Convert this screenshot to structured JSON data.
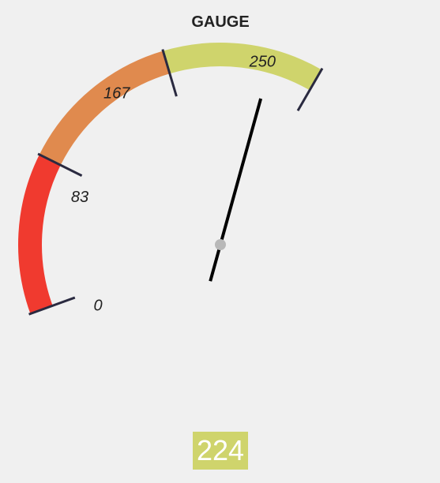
{
  "chart_data": {
    "type": "gauge",
    "title": "GAUGE",
    "min": 0,
    "max": 250,
    "value": 224,
    "value_label": "224",
    "ticks": [
      {
        "value": 0,
        "label": "0"
      },
      {
        "value": 83,
        "label": "83"
      },
      {
        "value": 167,
        "label": "167"
      },
      {
        "value": 250,
        "label": "250"
      }
    ],
    "bands": [
      {
        "from": 0,
        "to": 83,
        "color": "#f03a2f"
      },
      {
        "from": 83,
        "to": 167,
        "color": "#e08a4e"
      },
      {
        "from": 167,
        "to": 250,
        "color": "#cfd46c"
      }
    ],
    "value_box_color": "#cfd46c",
    "needle_color": "#000000",
    "hub_color": "#b8b8b8",
    "tick_color": "#2a2a40"
  }
}
